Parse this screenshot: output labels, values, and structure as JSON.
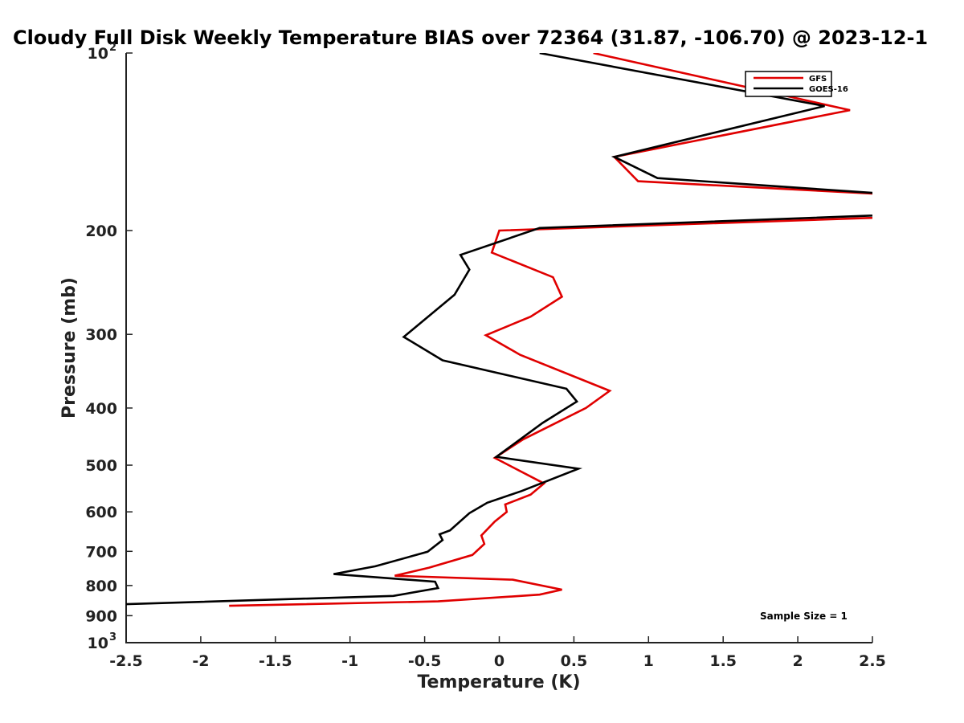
{
  "chart_data": {
    "type": "line",
    "title": "Cloudy Full Disk Weekly Temperature BIAS over 72364 (31.87, -106.70) @ 2023-12-1",
    "xlabel": "Temperature (K)",
    "ylabel": "Pressure (mb)",
    "xlim": [
      -2.5,
      2.5
    ],
    "ylim": [
      100,
      1000
    ],
    "yscale": "log",
    "y_reversed": true,
    "xticks": [
      "-2.5",
      "-2",
      "-1.5",
      "-1",
      "-0.5",
      "0",
      "0.5",
      "1",
      "1.5",
      "2",
      "2.5"
    ],
    "xtick_values": [
      -2.5,
      -2,
      -1.5,
      -1,
      -0.5,
      0,
      0.5,
      1,
      1.5,
      2,
      2.5
    ],
    "yticks": [
      {
        "value": 100,
        "base": "10",
        "exp": "2"
      },
      {
        "value": 200,
        "label": "200"
      },
      {
        "value": 300,
        "label": "300"
      },
      {
        "value": 400,
        "label": "400"
      },
      {
        "value": 500,
        "label": "500"
      },
      {
        "value": 600,
        "label": "600"
      },
      {
        "value": 700,
        "label": "700"
      },
      {
        "value": 800,
        "label": "800"
      },
      {
        "value": 900,
        "label": "900"
      },
      {
        "value": 1000,
        "base": "10",
        "exp": "3"
      }
    ],
    "grid": false,
    "legend_position": "top-right",
    "series": [
      {
        "name": "GFS",
        "color": "#e00000",
        "points": [
          [
            0.63,
            100
          ],
          [
            2.35,
            125
          ],
          [
            0.77,
            150
          ],
          [
            0.93,
            165
          ],
          [
            3.4,
            178
          ],
          [
            3.4,
            187
          ],
          [
            0.0,
            200
          ],
          [
            -0.05,
            218
          ],
          [
            0.36,
            240
          ],
          [
            0.42,
            259
          ],
          [
            0.21,
            280
          ],
          [
            -0.09,
            301
          ],
          [
            0.14,
            325
          ],
          [
            0.74,
            374
          ],
          [
            0.58,
            400
          ],
          [
            0.16,
            452
          ],
          [
            -0.03,
            486
          ],
          [
            0.3,
            537
          ],
          [
            0.21,
            561
          ],
          [
            0.04,
            583
          ],
          [
            0.05,
            600
          ],
          [
            -0.03,
            623
          ],
          [
            -0.12,
            658
          ],
          [
            -0.1,
            680
          ],
          [
            -0.18,
            710
          ],
          [
            -0.47,
            746
          ],
          [
            -0.7,
            770
          ],
          [
            0.09,
            782
          ],
          [
            0.42,
            813
          ],
          [
            0.27,
            829
          ],
          [
            -0.41,
            851
          ],
          [
            -1.81,
            866
          ]
        ]
      },
      {
        "name": "GOES-16",
        "color": "#000000",
        "points": [
          [
            0.27,
            100
          ],
          [
            2.18,
            123
          ],
          [
            0.77,
            150
          ],
          [
            1.06,
            163
          ],
          [
            3.4,
            179
          ],
          [
            3.4,
            185
          ],
          [
            0.27,
            198
          ],
          [
            -0.26,
            220
          ],
          [
            -0.2,
            233
          ],
          [
            -0.3,
            257
          ],
          [
            -0.64,
            303
          ],
          [
            -0.38,
            332
          ],
          [
            0.45,
            371
          ],
          [
            0.52,
            390
          ],
          [
            0.29,
            424
          ],
          [
            -0.02,
            484
          ],
          [
            0.53,
            507
          ],
          [
            0.15,
            553
          ],
          [
            -0.08,
            579
          ],
          [
            -0.2,
            603
          ],
          [
            -0.33,
            645
          ],
          [
            -0.4,
            655
          ],
          [
            -0.38,
            670
          ],
          [
            -0.48,
            701
          ],
          [
            -0.83,
            742
          ],
          [
            -1.11,
            765
          ],
          [
            -0.43,
            788
          ],
          [
            -0.41,
            808
          ],
          [
            -0.71,
            833
          ],
          [
            -3.0,
            868
          ]
        ]
      }
    ],
    "annotations": [
      {
        "text": "Sample Size = 1"
      }
    ]
  }
}
